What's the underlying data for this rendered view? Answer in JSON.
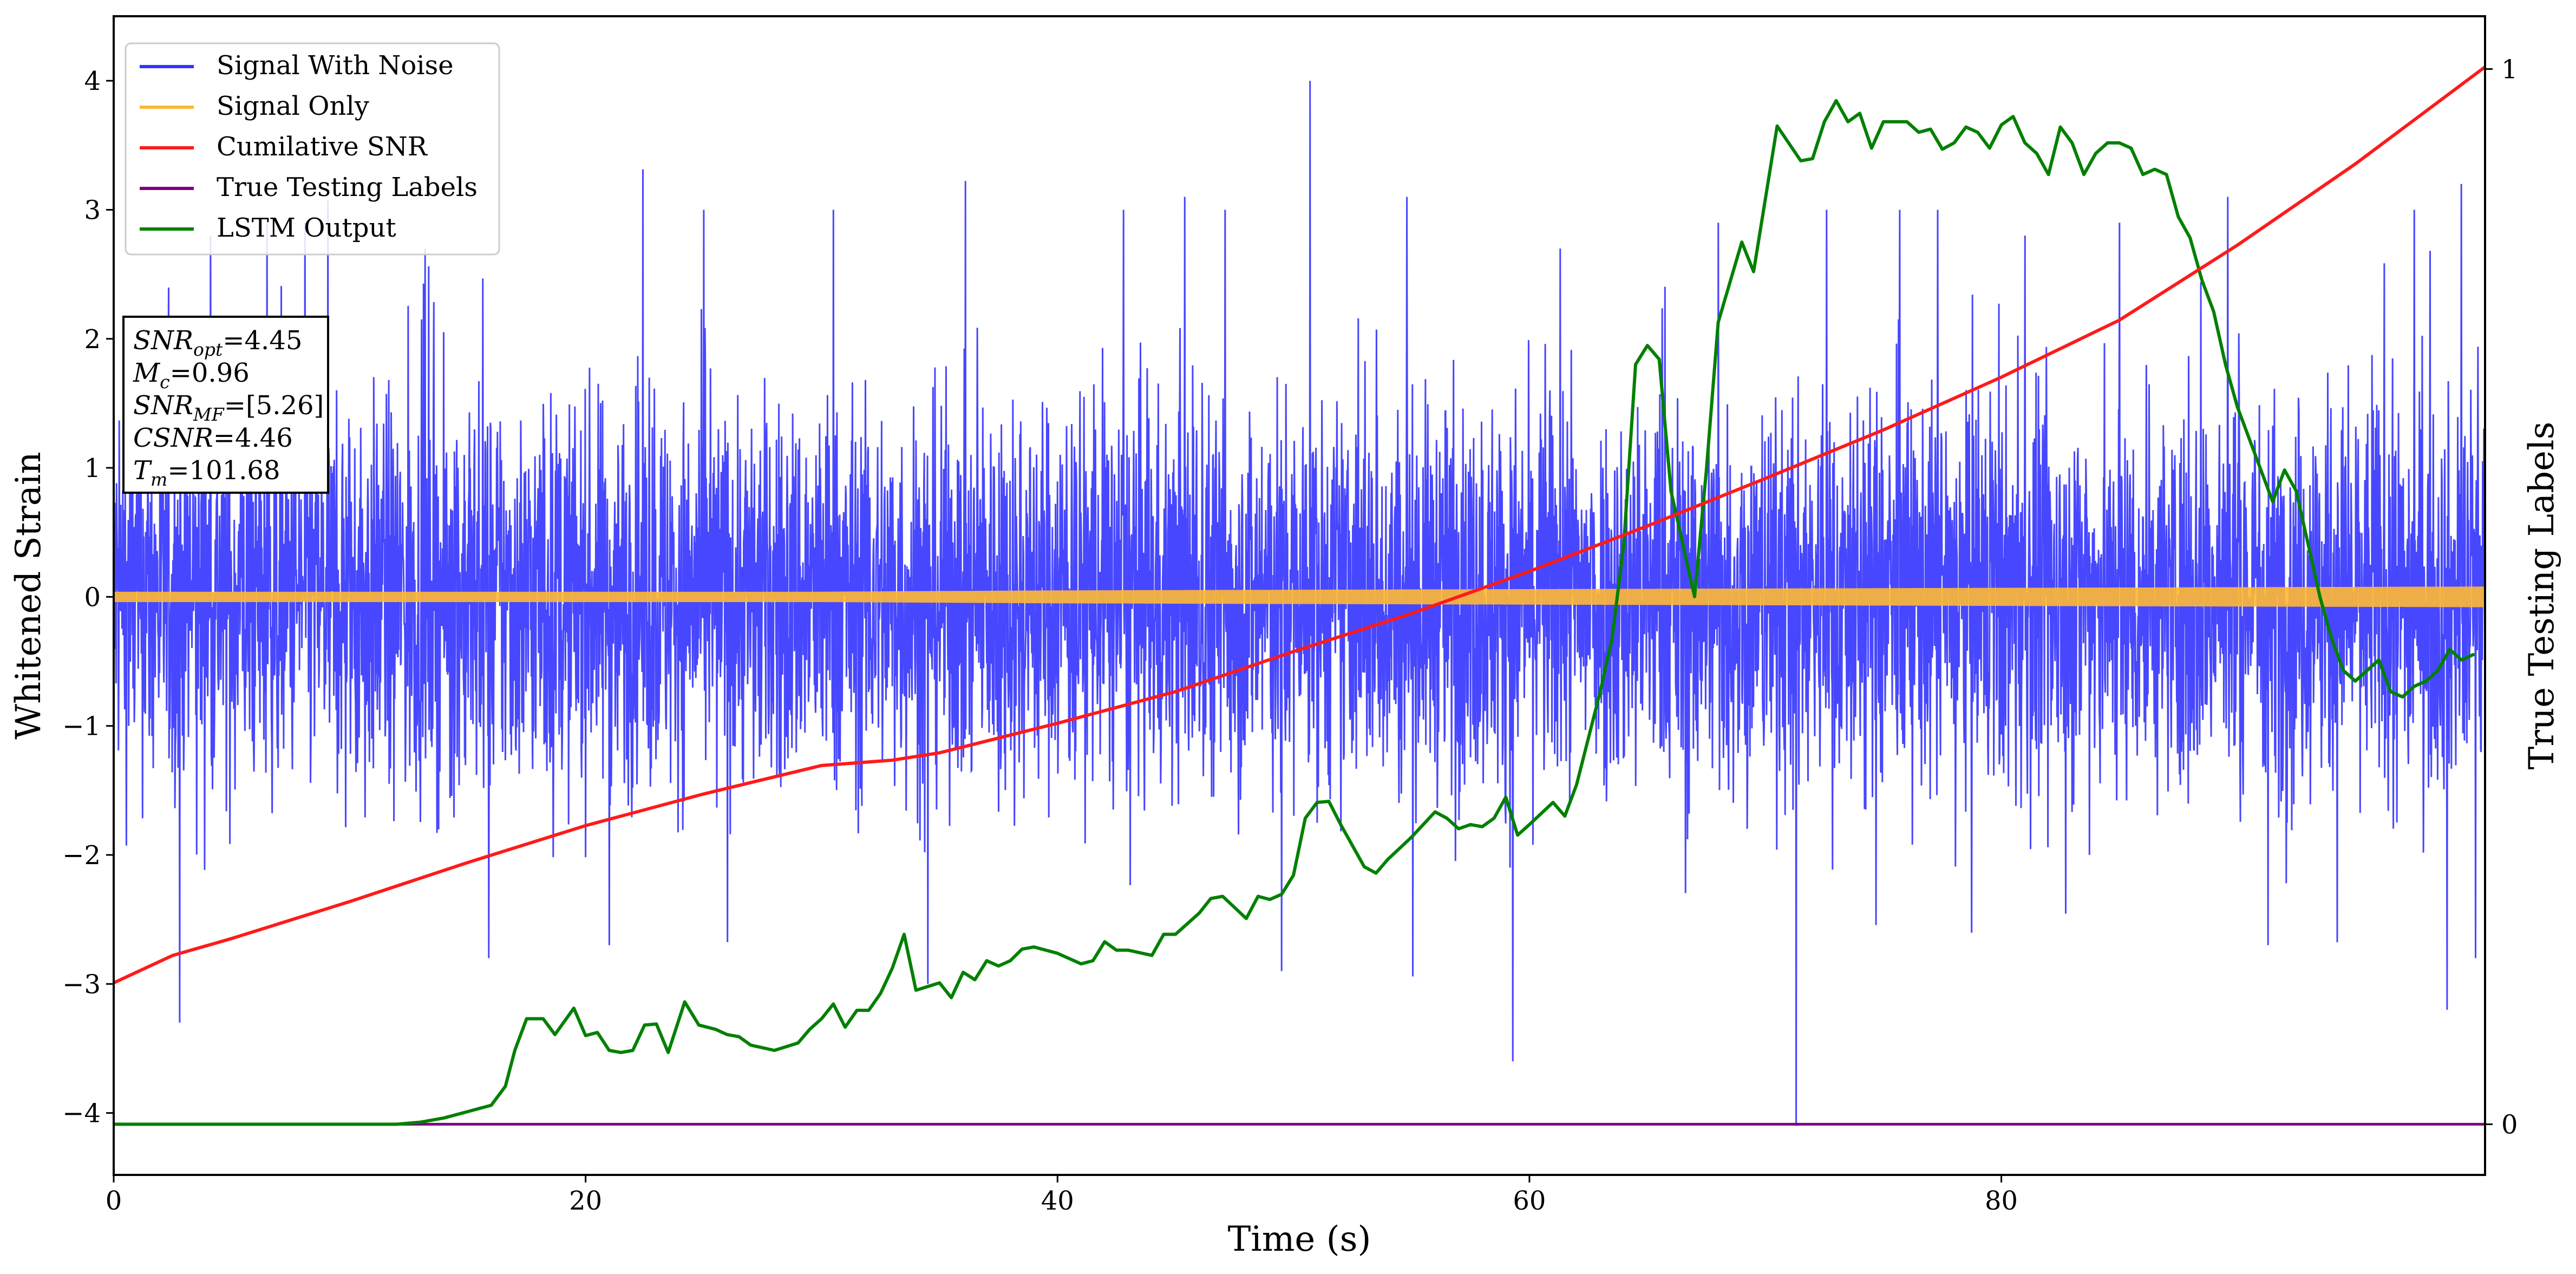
{
  "chart_data": {
    "type": "line",
    "xlabel": "Time (s)",
    "ylabel": "Whitened Strain",
    "ylabel_right": "True Testing Labels",
    "xlim": [
      0,
      100.5
    ],
    "ylim": [
      -4.48,
      4.5
    ],
    "ylim_right": [
      -0.048,
      1.05
    ],
    "xticks": [
      0,
      20,
      40,
      60,
      80
    ],
    "yticks": [
      -4,
      -3,
      -2,
      -1,
      0,
      1,
      2,
      3,
      4
    ],
    "yticks_right": [
      0,
      1
    ],
    "grid": false,
    "legend_position": "top-left",
    "legend": [
      {
        "label": "Signal With Noise",
        "color": "#3333ff"
      },
      {
        "label": "Signal Only",
        "color": "#ffb833"
      },
      {
        "label": "Cumilative SNR",
        "color": "#ff1a1a"
      },
      {
        "label": "True Testing Labels",
        "color": "#800080"
      },
      {
        "label": "LSTM Output",
        "color": "#008000"
      }
    ],
    "annotation": {
      "lines": [
        {
          "sym": "SNR",
          "sub": "opt",
          "val": "=4.45"
        },
        {
          "sym": "M",
          "sub": "c",
          "val": "=0.96"
        },
        {
          "sym": "SNR",
          "sub": "MF",
          "val": "=[5.26]"
        },
        {
          "sym": "CSNR",
          "sub": "",
          "val": "=4.46"
        },
        {
          "sym": "T",
          "sub": "m",
          "val": "=101.68"
        }
      ]
    },
    "series": [
      {
        "name": "Signal With Noise",
        "axis": "left",
        "color": "#3333ff",
        "band_typical": 1.35,
        "notable_peaks": [
          {
            "x": 1.0,
            "y": 2.1
          },
          {
            "x": 2.8,
            "y": -3.3
          },
          {
            "x": 4.1,
            "y": 2.8
          },
          {
            "x": 6.5,
            "y": 2.9
          },
          {
            "x": 8.1,
            "y": 2.9
          },
          {
            "x": 13.2,
            "y": 2.7
          },
          {
            "x": 15.9,
            "y": -2.8
          },
          {
            "x": 21.0,
            "y": -2.7
          },
          {
            "x": 25.0,
            "y": 3.0
          },
          {
            "x": 30.5,
            "y": 3.0
          },
          {
            "x": 34.5,
            "y": -3.0
          },
          {
            "x": 42.8,
            "y": 3.0
          },
          {
            "x": 45.4,
            "y": 3.1
          },
          {
            "x": 47.1,
            "y": 3.0
          },
          {
            "x": 49.5,
            "y": -2.9
          },
          {
            "x": 50.7,
            "y": 4.0
          },
          {
            "x": 54.8,
            "y": 3.1
          },
          {
            "x": 59.3,
            "y": -3.6
          },
          {
            "x": 61.3,
            "y": 2.7
          },
          {
            "x": 68.0,
            "y": 2.9
          },
          {
            "x": 71.3,
            "y": -4.1
          },
          {
            "x": 72.6,
            "y": 3.0
          },
          {
            "x": 75.7,
            "y": 3.0
          },
          {
            "x": 77.3,
            "y": 3.0
          },
          {
            "x": 81.0,
            "y": 2.8
          },
          {
            "x": 85.0,
            "y": 2.9
          },
          {
            "x": 89.6,
            "y": 3.1
          },
          {
            "x": 91.3,
            "y": -2.7
          },
          {
            "x": 97.5,
            "y": 3.0
          },
          {
            "x": 98.9,
            "y": -3.2
          },
          {
            "x": 99.5,
            "y": 3.2
          },
          {
            "x": 100.1,
            "y": -2.8
          }
        ]
      },
      {
        "name": "Signal Only",
        "axis": "left",
        "color": "#ffb833",
        "points": [
          [
            0,
            0.04
          ],
          [
            30,
            0.04
          ],
          [
            40,
            0.05
          ],
          [
            60,
            0.06
          ],
          [
            80,
            0.07
          ],
          [
            100.5,
            0.08
          ]
        ]
      },
      {
        "name": "Cumilative SNR",
        "axis": "right",
        "color": "#ff1a1a",
        "points": [
          [
            0,
            0.134
          ],
          [
            2.5,
            0.16
          ],
          [
            5,
            0.176
          ],
          [
            10,
            0.211
          ],
          [
            15,
            0.248
          ],
          [
            20,
            0.283
          ],
          [
            25,
            0.313
          ],
          [
            30,
            0.34
          ],
          [
            33,
            0.345
          ],
          [
            35,
            0.352
          ],
          [
            40,
            0.38
          ],
          [
            45,
            0.41
          ],
          [
            50,
            0.448
          ],
          [
            55,
            0.484
          ],
          [
            60,
            0.524
          ],
          [
            65,
            0.567
          ],
          [
            70,
            0.612
          ],
          [
            75,
            0.658
          ],
          [
            80,
            0.708
          ],
          [
            85,
            0.762
          ],
          [
            90,
            0.833
          ],
          [
            95,
            0.91
          ],
          [
            100.5,
            1.002
          ]
        ]
      },
      {
        "name": "True Testing Labels",
        "axis": "right",
        "color": "#800080",
        "points": [
          [
            0,
            0.0
          ],
          [
            100.5,
            0.0
          ]
        ]
      },
      {
        "name": "LSTM Output",
        "axis": "right",
        "color": "#008000",
        "points": [
          [
            0,
            0.0
          ],
          [
            12,
            0.0
          ],
          [
            13,
            0.002
          ],
          [
            14,
            0.006
          ],
          [
            15,
            0.012
          ],
          [
            16,
            0.018
          ],
          [
            16.6,
            0.036
          ],
          [
            17,
            0.07
          ],
          [
            17.5,
            0.1
          ],
          [
            18.2,
            0.1
          ],
          [
            18.7,
            0.085
          ],
          [
            19.5,
            0.11
          ],
          [
            20,
            0.084
          ],
          [
            20.5,
            0.087
          ],
          [
            21,
            0.07
          ],
          [
            21.5,
            0.068
          ],
          [
            22,
            0.07
          ],
          [
            22.5,
            0.094
          ],
          [
            23,
            0.095
          ],
          [
            23.5,
            0.068
          ],
          [
            24.2,
            0.116
          ],
          [
            24.8,
            0.094
          ],
          [
            25.5,
            0.09
          ],
          [
            26,
            0.085
          ],
          [
            26.5,
            0.083
          ],
          [
            27,
            0.075
          ],
          [
            28,
            0.07
          ],
          [
            29,
            0.077
          ],
          [
            29.5,
            0.09
          ],
          [
            30,
            0.1
          ],
          [
            30.5,
            0.114
          ],
          [
            31,
            0.092
          ],
          [
            31.5,
            0.108
          ],
          [
            32,
            0.108
          ],
          [
            32.5,
            0.124
          ],
          [
            33,
            0.148
          ],
          [
            33.5,
            0.18
          ],
          [
            34,
            0.127
          ],
          [
            35,
            0.134
          ],
          [
            35.5,
            0.12
          ],
          [
            36,
            0.144
          ],
          [
            36.5,
            0.137
          ],
          [
            37,
            0.155
          ],
          [
            37.5,
            0.15
          ],
          [
            38,
            0.155
          ],
          [
            38.5,
            0.166
          ],
          [
            39,
            0.168
          ],
          [
            40,
            0.162
          ],
          [
            41,
            0.152
          ],
          [
            41.5,
            0.155
          ],
          [
            42,
            0.173
          ],
          [
            42.5,
            0.165
          ],
          [
            43,
            0.165
          ],
          [
            44,
            0.16
          ],
          [
            44.5,
            0.18
          ],
          [
            45,
            0.18
          ],
          [
            46,
            0.2
          ],
          [
            46.5,
            0.214
          ],
          [
            47,
            0.216
          ],
          [
            48,
            0.195
          ],
          [
            48.5,
            0.216
          ],
          [
            49,
            0.213
          ],
          [
            49.5,
            0.218
          ],
          [
            50,
            0.236
          ],
          [
            50.5,
            0.29
          ],
          [
            51,
            0.305
          ],
          [
            51.5,
            0.306
          ],
          [
            52,
            0.284
          ],
          [
            53,
            0.244
          ],
          [
            53.5,
            0.238
          ],
          [
            54,
            0.251
          ],
          [
            55,
            0.272
          ],
          [
            56,
            0.296
          ],
          [
            56.5,
            0.29
          ],
          [
            57,
            0.28
          ],
          [
            57.5,
            0.284
          ],
          [
            58,
            0.282
          ],
          [
            58.5,
            0.29
          ],
          [
            59,
            0.31
          ],
          [
            59.5,
            0.274
          ],
          [
            60,
            0.284
          ],
          [
            61,
            0.305
          ],
          [
            61.5,
            0.292
          ],
          [
            62,
            0.322
          ],
          [
            63,
            0.41
          ],
          [
            63.5,
            0.46
          ],
          [
            64,
            0.55
          ],
          [
            64.5,
            0.72
          ],
          [
            65,
            0.738
          ],
          [
            65.5,
            0.725
          ],
          [
            66,
            0.6
          ],
          [
            66.5,
            0.55
          ],
          [
            67,
            0.5
          ],
          [
            67.5,
            0.62
          ],
          [
            68,
            0.76
          ],
          [
            69,
            0.836
          ],
          [
            69.5,
            0.808
          ],
          [
            70.5,
            0.946
          ],
          [
            71.5,
            0.913
          ],
          [
            72,
            0.915
          ],
          [
            72.5,
            0.95
          ],
          [
            73,
            0.97
          ],
          [
            73.5,
            0.95
          ],
          [
            74,
            0.958
          ],
          [
            74.5,
            0.925
          ],
          [
            75,
            0.95
          ],
          [
            76,
            0.95
          ],
          [
            76.5,
            0.94
          ],
          [
            77,
            0.943
          ],
          [
            77.5,
            0.924
          ],
          [
            78,
            0.93
          ],
          [
            78.5,
            0.945
          ],
          [
            79,
            0.94
          ],
          [
            79.5,
            0.925
          ],
          [
            80,
            0.947
          ],
          [
            80.5,
            0.955
          ],
          [
            81,
            0.93
          ],
          [
            81.5,
            0.92
          ],
          [
            82,
            0.9
          ],
          [
            82.5,
            0.945
          ],
          [
            83,
            0.93
          ],
          [
            83.5,
            0.9
          ],
          [
            84,
            0.92
          ],
          [
            84.5,
            0.93
          ],
          [
            85,
            0.93
          ],
          [
            85.5,
            0.925
          ],
          [
            86,
            0.9
          ],
          [
            86.5,
            0.905
          ],
          [
            87,
            0.9
          ],
          [
            87.5,
            0.86
          ],
          [
            88,
            0.84
          ],
          [
            88.5,
            0.8
          ],
          [
            89,
            0.77
          ],
          [
            89.5,
            0.72
          ],
          [
            90,
            0.68
          ],
          [
            91,
            0.62
          ],
          [
            91.5,
            0.59
          ],
          [
            92,
            0.62
          ],
          [
            92.5,
            0.6
          ],
          [
            93,
            0.55
          ],
          [
            93.5,
            0.5
          ],
          [
            94,
            0.46
          ],
          [
            94.5,
            0.43
          ],
          [
            95,
            0.42
          ],
          [
            96,
            0.44
          ],
          [
            96.5,
            0.41
          ],
          [
            97,
            0.405
          ],
          [
            97.5,
            0.415
          ],
          [
            98,
            0.42
          ],
          [
            98.5,
            0.43
          ],
          [
            99,
            0.45
          ],
          [
            99.5,
            0.44
          ],
          [
            100,
            0.445
          ]
        ]
      }
    ]
  }
}
